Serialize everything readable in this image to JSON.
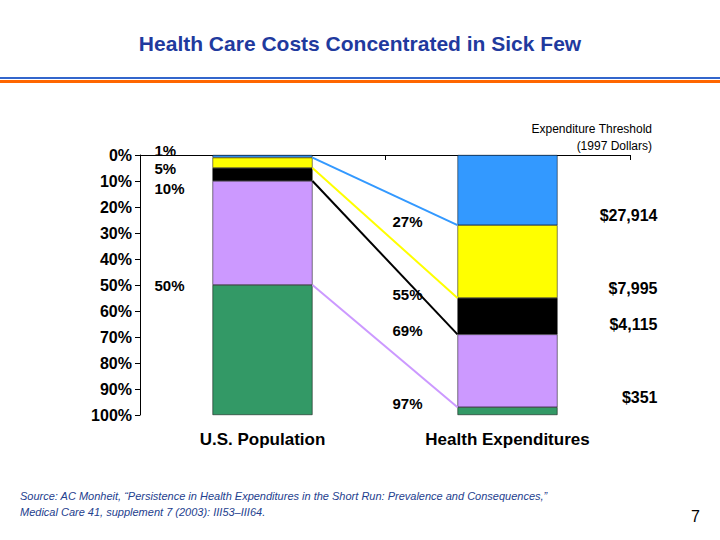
{
  "chart_data": {
    "type": "bar",
    "stacked": true,
    "grid": false,
    "title": "Health Care Costs Concentrated in Sick Few",
    "categories": [
      "U.S. Population",
      "Health Expenditures"
    ],
    "series": [
      {
        "color": "#3399ff",
        "values": [
          1,
          27
        ]
      },
      {
        "color": "#ffff00",
        "values": [
          4,
          28
        ]
      },
      {
        "color": "#000000",
        "values": [
          5,
          14
        ]
      },
      {
        "color": "#cc99ff",
        "values": [
          40,
          28
        ]
      },
      {
        "color": "#339966",
        "values": [
          50,
          3
        ]
      }
    ],
    "ylim": [
      100,
      0
    ],
    "yticks": [
      {
        "value": 0,
        "label": "0%"
      },
      {
        "value": 10,
        "label": "10%"
      },
      {
        "value": 20,
        "label": "20%"
      },
      {
        "value": 30,
        "label": "30%"
      },
      {
        "value": 40,
        "label": "40%"
      },
      {
        "value": 50,
        "label": "50%"
      },
      {
        "value": 60,
        "label": "60%"
      },
      {
        "value": 70,
        "label": "70%"
      },
      {
        "value": 80,
        "label": "80%"
      },
      {
        "value": 90,
        "label": "90%"
      },
      {
        "value": 100,
        "label": "100%"
      }
    ],
    "population_labels": [
      {
        "value": 1,
        "label": "1%"
      },
      {
        "value": 5,
        "label": "5%"
      },
      {
        "value": 10,
        "label": "10%"
      },
      {
        "value": 50,
        "label": "50%"
      }
    ],
    "expenditure_labels": [
      {
        "value": 27,
        "label": "27%"
      },
      {
        "value": 55,
        "label": "55%"
      },
      {
        "value": 69,
        "label": "69%"
      },
      {
        "value": 97,
        "label": "97%"
      }
    ],
    "threshold_title": [
      "Expenditure Threshold",
      "(1997 Dollars)"
    ],
    "thresholds": [
      "$27,914",
      "$7,995",
      "$4,115",
      "$351"
    ],
    "source_label": "Source:",
    "source": "AC Monheit, “Persistence in Health Expenditures in the Short Run: Prevalence and Consequences,” Medical Care 41, supplement 7 (2003): III53–III64.",
    "page_number": 7
  }
}
